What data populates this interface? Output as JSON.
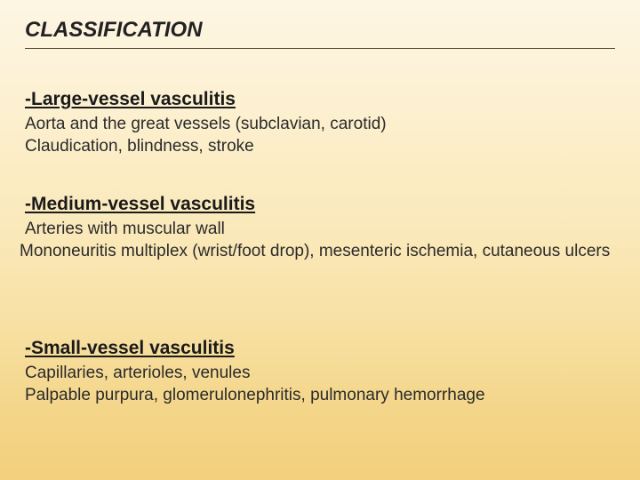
{
  "title": "CLASSIFICATION",
  "colors": {
    "text": "#2a2a2a",
    "heading": "#1a1a1a",
    "underline": "#5a4a2a",
    "bg_top": "#fdf6e3",
    "bg_bottom": "#f2d07c"
  },
  "typography": {
    "title_fontsize": 24,
    "title_style": "bold italic",
    "heading_fontsize": 21,
    "heading_style": "bold underline",
    "body_fontsize": 19,
    "font_family": "Arial"
  },
  "sections": [
    {
      "heading": "-Large-vessel vasculitis",
      "lines": [
        "Aorta and the great vessels (subclavian, carotid)",
        "Claudication, blindness, stroke"
      ]
    },
    {
      "heading": "-Medium-vessel vasculitis",
      "lines": [
        "Arteries with muscular wall",
        "Mononeuritis multiplex (wrist/foot drop), mesenteric ischemia, cutaneous ulcers"
      ]
    },
    {
      "heading": "-Small-vessel vasculitis",
      "lines": [
        "Capillaries, arterioles, venules",
        "Palpable purpura, glomerulonephritis, pulmonary hemorrhage"
      ]
    }
  ]
}
